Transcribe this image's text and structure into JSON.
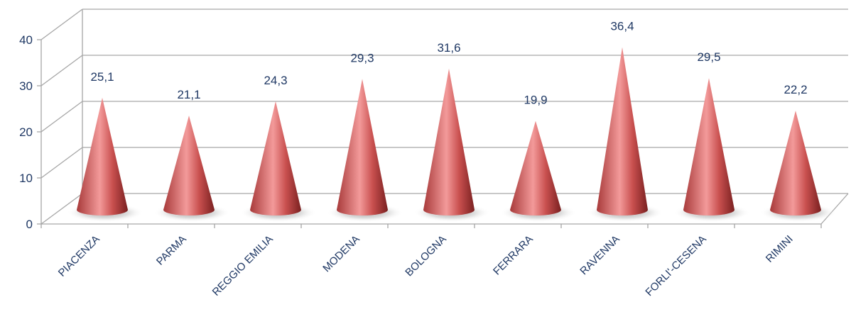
{
  "chart_data": {
    "type": "bar",
    "style": "3d-cone",
    "categories": [
      "PIACENZA",
      "PARMA",
      "REGGIO EMILIA",
      "MODENA",
      "BOLOGNA",
      "FERRARA",
      "RAVENNA",
      "FORLI'-CESENA",
      "RIMINI"
    ],
    "values": [
      25.1,
      21.1,
      24.3,
      29.3,
      31.6,
      19.9,
      36.4,
      29.5,
      22.2
    ],
    "value_labels": [
      "25,1",
      "21,1",
      "24,3",
      "29,3",
      "31,6",
      "19,9",
      "36,4",
      "29,5",
      "22,2"
    ],
    "yticks": [
      "0",
      "10",
      "20",
      "30",
      "40"
    ],
    "ylim": [
      0,
      40
    ],
    "grid": true,
    "legend": "none",
    "title": "",
    "xlabel": "",
    "ylabel": "",
    "colors": {
      "cone_light": "#f08a8a",
      "cone_mid": "#c0504d",
      "cone_dark": "#7a2020",
      "grid": "#a6a6a6",
      "text": "#1f3864"
    }
  }
}
